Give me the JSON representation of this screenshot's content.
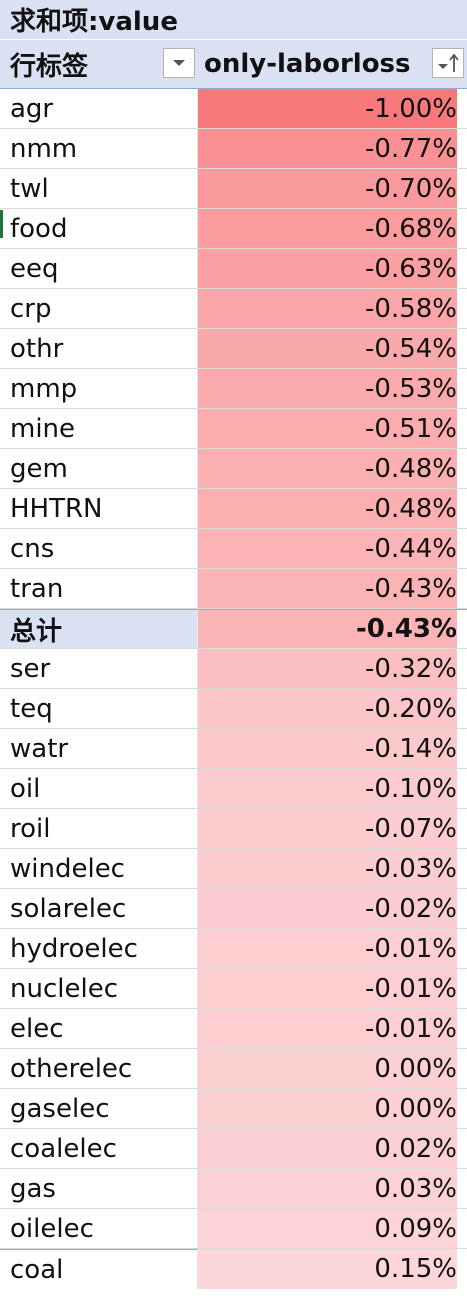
{
  "pivot": {
    "title": "求和项:value",
    "row_header": "行标签",
    "col_header": "only-laborloss",
    "filter_icon": "dropdown-filter-icon",
    "sort_icon": "sort-filter-icon",
    "rows": [
      {
        "label": "agr",
        "value": "-1.00%",
        "num": -1.0,
        "color": "#f8797c"
      },
      {
        "label": "nmm",
        "value": "-0.77%",
        "num": -0.77,
        "color": "#f99194"
      },
      {
        "label": "twl",
        "value": "-0.70%",
        "num": -0.7,
        "color": "#f9999b"
      },
      {
        "label": "food",
        "value": "-0.68%",
        "num": -0.68,
        "color": "#fa9b9d"
      },
      {
        "label": "eeq",
        "value": "-0.63%",
        "num": -0.63,
        "color": "#faa0a2"
      },
      {
        "label": "crp",
        "value": "-0.58%",
        "num": -0.58,
        "color": "#faa5a7"
      },
      {
        "label": "othr",
        "value": "-0.54%",
        "num": -0.54,
        "color": "#faa9ab"
      },
      {
        "label": "mmp",
        "value": "-0.53%",
        "num": -0.53,
        "color": "#faaaac"
      },
      {
        "label": "mine",
        "value": "-0.51%",
        "num": -0.51,
        "color": "#fbacae"
      },
      {
        "label": "gem",
        "value": "-0.48%",
        "num": -0.48,
        "color": "#fbafb1"
      },
      {
        "label": "HHTRN",
        "value": "-0.48%",
        "num": -0.48,
        "color": "#fbafb1"
      },
      {
        "label": "cns",
        "value": "-0.44%",
        "num": -0.44,
        "color": "#fbb3b5"
      },
      {
        "label": "tran",
        "value": "-0.43%",
        "num": -0.43,
        "color": "#fbb4b6"
      },
      {
        "label": "总计",
        "value": "-0.43%",
        "num": -0.43,
        "color": "#fbb4b6",
        "total": true
      },
      {
        "label": "ser",
        "value": "-0.32%",
        "num": -0.32,
        "color": "#fbbfc1"
      },
      {
        "label": "teq",
        "value": "-0.20%",
        "num": -0.2,
        "color": "#fcc6c8"
      },
      {
        "label": "watr",
        "value": "-0.14%",
        "num": -0.14,
        "color": "#fcc9cb"
      },
      {
        "label": "oil",
        "value": "-0.10%",
        "num": -0.1,
        "color": "#fccbcd"
      },
      {
        "label": "roil",
        "value": "-0.07%",
        "num": -0.07,
        "color": "#fccccf"
      },
      {
        "label": "windelec",
        "value": "-0.03%",
        "num": -0.03,
        "color": "#fccdcf"
      },
      {
        "label": "solarelec",
        "value": "-0.02%",
        "num": -0.02,
        "color": "#fccdd0"
      },
      {
        "label": "hydroelec",
        "value": "-0.01%",
        "num": -0.01,
        "color": "#fcced0"
      },
      {
        "label": "nuclelec",
        "value": "-0.01%",
        "num": -0.01,
        "color": "#fcced0"
      },
      {
        "label": "elec",
        "value": "-0.01%",
        "num": -0.01,
        "color": "#fcced0"
      },
      {
        "label": "otherelec",
        "value": "0.00%",
        "num": 0.0,
        "color": "#fccfd1"
      },
      {
        "label": "gaselec",
        "value": "0.00%",
        "num": 0.0,
        "color": "#fccfd1"
      },
      {
        "label": "coalelec",
        "value": "0.02%",
        "num": 0.02,
        "color": "#fcd0d2"
      },
      {
        "label": "gas",
        "value": "0.03%",
        "num": 0.03,
        "color": "#fcd1d3"
      },
      {
        "label": "oilelec",
        "value": "0.09%",
        "num": 0.09,
        "color": "#fcd4d6"
      },
      {
        "label": "coal",
        "value": "0.15%",
        "num": 0.15,
        "color": "#fcd6d8"
      }
    ]
  }
}
